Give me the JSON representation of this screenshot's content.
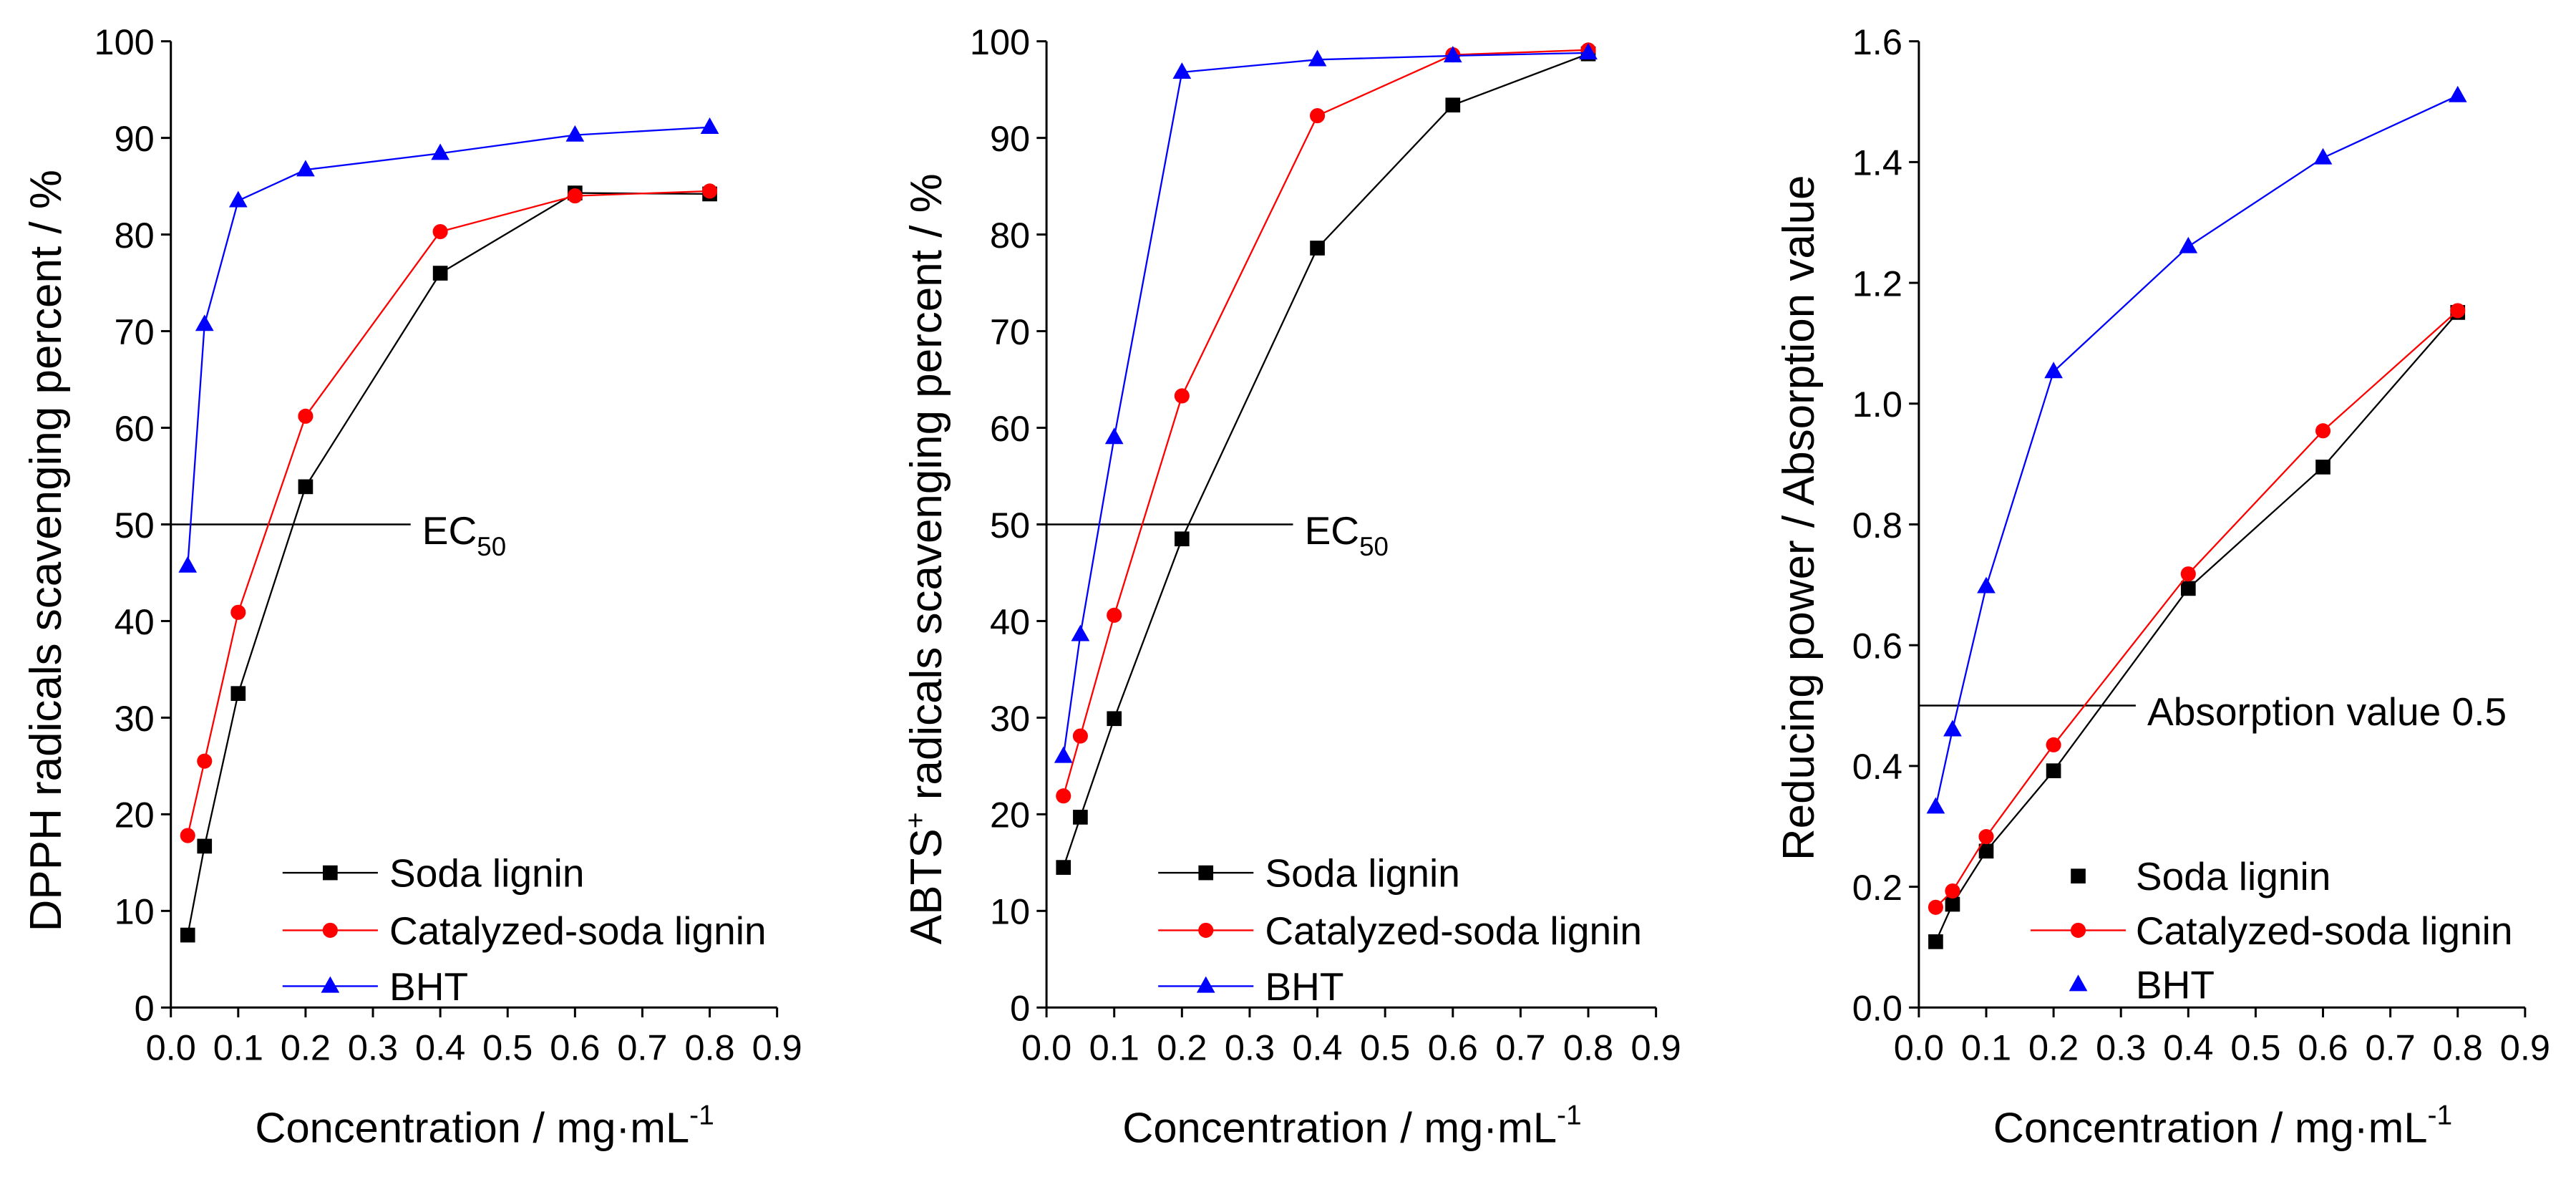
{
  "chart_data": [
    {
      "type": "line",
      "xlabel": {
        "text": "Concentration / mg·mL",
        "sup": "-1"
      },
      "ylabel": {
        "text": "DPPH radicals scavenging percent / %",
        "sup": "",
        "rest": ""
      },
      "xlim": [
        0,
        0.9
      ],
      "ylim": [
        0,
        100
      ],
      "xticks": [
        "0.0",
        "0.1",
        "0.2",
        "0.3",
        "0.4",
        "0.5",
        "0.6",
        "0.7",
        "0.8",
        "0.9"
      ],
      "yticks": [
        "0",
        "10",
        "20",
        "30",
        "40",
        "50",
        "60",
        "70",
        "80",
        "90",
        "100"
      ],
      "grid": false,
      "legend_position": "bottom-center",
      "x": [
        0.025,
        0.05,
        0.1,
        0.2,
        0.4,
        0.6,
        0.8
      ],
      "series": [
        {
          "name": "Soda lignin",
          "color": "#000000",
          "marker": "square",
          "legend_line": true,
          "values": [
            7.5,
            16.7,
            32.5,
            53.9,
            76.0,
            84.3,
            84.2
          ]
        },
        {
          "name": "Catalyzed-soda lignin",
          "color": "#ff0000",
          "marker": "circle",
          "legend_line": true,
          "values": [
            17.8,
            25.5,
            40.9,
            61.2,
            80.3,
            84.0,
            84.5
          ]
        },
        {
          "name": "BHT",
          "color": "#0000ff",
          "marker": "triangle",
          "legend_line": true,
          "values": [
            45.7,
            70.7,
            83.5,
            86.7,
            88.4,
            90.3,
            91.1
          ]
        }
      ],
      "reference_line": {
        "y": 50,
        "x_range": [
          0,
          0.356
        ],
        "label": "EC",
        "label_sub": "50"
      }
    },
    {
      "type": "line",
      "xlabel": {
        "text": "Concentration / mg·mL",
        "sup": "-1"
      },
      "ylabel": {
        "text": "ABTS",
        "sup": "+",
        "rest": " radicals scavenging percent / %"
      },
      "xlim": [
        0,
        0.9
      ],
      "ylim": [
        0,
        100
      ],
      "xticks": [
        "0.0",
        "0.1",
        "0.2",
        "0.3",
        "0.4",
        "0.5",
        "0.6",
        "0.7",
        "0.8",
        "0.9"
      ],
      "yticks": [
        "0",
        "10",
        "20",
        "30",
        "40",
        "50",
        "60",
        "70",
        "80",
        "90",
        "100"
      ],
      "grid": false,
      "legend_position": "bottom-center",
      "x": [
        0.025,
        0.05,
        0.1,
        0.2,
        0.4,
        0.6,
        0.8
      ],
      "series": [
        {
          "name": "Soda lignin",
          "color": "#000000",
          "marker": "square",
          "legend_line": true,
          "values": [
            14.5,
            19.7,
            29.9,
            48.5,
            78.6,
            93.4,
            98.7
          ]
        },
        {
          "name": "Catalyzed-soda lignin",
          "color": "#ff0000",
          "marker": "circle",
          "legend_line": true,
          "values": [
            21.9,
            28.1,
            40.6,
            63.3,
            92.3,
            98.6,
            99.1
          ]
        },
        {
          "name": "BHT",
          "color": "#0000ff",
          "marker": "triangle",
          "legend_line": true,
          "values": [
            26.0,
            38.6,
            59.0,
            96.8,
            98.1,
            98.5,
            98.8
          ]
        }
      ],
      "reference_line": {
        "y": 50,
        "x_range": [
          0,
          0.364
        ],
        "label": "EC",
        "label_sub": "50"
      }
    },
    {
      "type": "line",
      "xlabel": {
        "text": "Concentration / mg·mL",
        "sup": "-1"
      },
      "ylabel": {
        "text": "Reducing power / Absorption value",
        "sup": "",
        "rest": ""
      },
      "xlim": [
        0,
        0.9
      ],
      "ylim": [
        0,
        1.6
      ],
      "xticks": [
        "0.0",
        "0.1",
        "0.2",
        "0.3",
        "0.4",
        "0.5",
        "0.6",
        "0.7",
        "0.8",
        "0.9"
      ],
      "yticks": [
        "0.0",
        "0.2",
        "0.4",
        "0.6",
        "0.8",
        "1.0",
        "1.2",
        "1.4",
        "1.6"
      ],
      "grid": false,
      "legend_position": "bottom-center",
      "x": [
        0.025,
        0.05,
        0.1,
        0.2,
        0.4,
        0.6,
        0.8
      ],
      "series": [
        {
          "name": "Soda lignin",
          "color": "#000000",
          "marker": "square",
          "legend_line": false,
          "values": [
            0.109,
            0.171,
            0.259,
            0.392,
            0.694,
            0.895,
            1.151
          ]
        },
        {
          "name": "Catalyzed-soda lignin",
          "color": "#ff0000",
          "marker": "circle",
          "legend_line": true,
          "values": [
            0.166,
            0.193,
            0.283,
            0.435,
            0.718,
            0.955,
            1.154
          ]
        },
        {
          "name": "BHT",
          "color": "#0000ff",
          "marker": "triangle",
          "legend_line": false,
          "values": [
            0.332,
            0.46,
            0.697,
            1.053,
            1.26,
            1.407,
            1.51
          ]
        }
      ],
      "reference_line": {
        "y": 0.5,
        "x_range": [
          0,
          0.322
        ],
        "label": "Absorption value 0.5",
        "label_sub": ""
      }
    }
  ]
}
